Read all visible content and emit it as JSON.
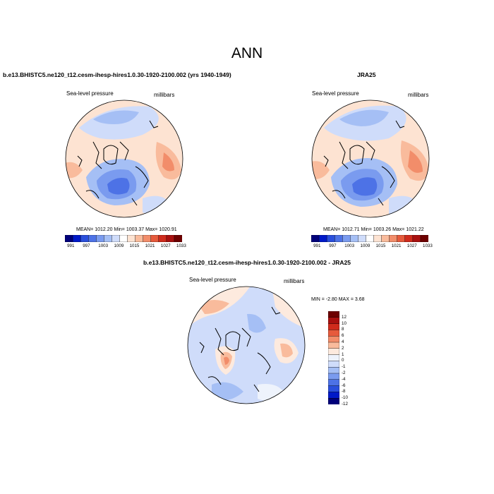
{
  "figure": {
    "title": "ANN"
  },
  "panels": [
    {
      "id": "model",
      "title": "b.e13.BHISTC5.ne120_t12.cesm-ihesp-hires1.0.30-1920-2100.002 (yrs 1940-1949)",
      "left_label": "Sea-level pressure",
      "right_label": "millibars",
      "stats": "MEAN= 1012.20  Min= 1003.37  Max= 1020.91"
    },
    {
      "id": "obs",
      "title": "JRA25",
      "left_label": "Sea-level pressure",
      "right_label": "millibars",
      "stats": "MEAN= 1012.71  Min= 1003.26  Max= 1021.22"
    },
    {
      "id": "diff",
      "title": "b.e13.BHISTC5.ne120_t12.cesm-ihesp-hires1.0.30-1920-2100.002 - JRA25",
      "left_label": "Sea-level pressure",
      "right_label": "millibars",
      "stats": "MIN =  -2.80 MAX =   3.68"
    }
  ],
  "colorbars": {
    "abs": {
      "colors": [
        "#00007a",
        "#0019c8",
        "#2a4fdc",
        "#4d72e6",
        "#7a9bef",
        "#a5bff5",
        "#cfdcfa",
        "#ffffff",
        "#fde3d2",
        "#f9bb9c",
        "#f28d6a",
        "#e65a3c",
        "#cf2b1c",
        "#a8100f",
        "#6d0000"
      ],
      "tick_labels": [
        "991",
        "997",
        "1003",
        "1009",
        "1015",
        "1021",
        "1027",
        "1033"
      ]
    },
    "diff": {
      "colors": [
        "#00007a",
        "#0019c8",
        "#2a4fdc",
        "#4d72e6",
        "#7a9bef",
        "#a5bff5",
        "#cfdcfa",
        "#eef3fc",
        "#fdeade",
        "#f9bb9c",
        "#f28d6a",
        "#e65a3c",
        "#cf2b1c",
        "#a8100f",
        "#6d0000"
      ],
      "tick_labels": [
        "12",
        "10",
        "8",
        "6",
        "4",
        "2",
        "1",
        "0",
        "-1",
        "-2",
        "-4",
        "-6",
        "-8",
        "-10",
        "-12"
      ]
    }
  }
}
